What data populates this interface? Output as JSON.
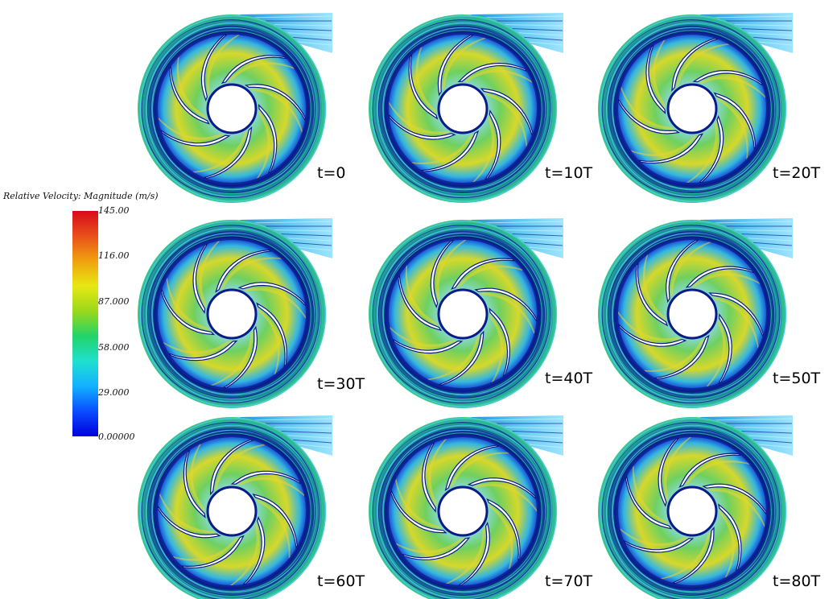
{
  "legend": {
    "title": "Relative Velocity: Magnitude (m/s)",
    "ticks": [
      "145.00",
      "116.00",
      "87.000",
      "58.000",
      "29.000",
      "0.00000"
    ],
    "colors": [
      "#0000dd",
      "#0a4cff",
      "#12b0ff",
      "#1fe0d0",
      "#22d46a",
      "#9ad81a",
      "#e8e812",
      "#f0a20e",
      "#e8501a",
      "#d80a1a"
    ]
  },
  "panels": [
    {
      "label": "t=0"
    },
    {
      "label": "t=10T"
    },
    {
      "label": "t=20T"
    },
    {
      "label": "t=30T"
    },
    {
      "label": "t=40T"
    },
    {
      "label": "t=50T"
    },
    {
      "label": "t=60T"
    },
    {
      "label": "t=70T"
    },
    {
      "label": "t=80T"
    }
  ]
}
